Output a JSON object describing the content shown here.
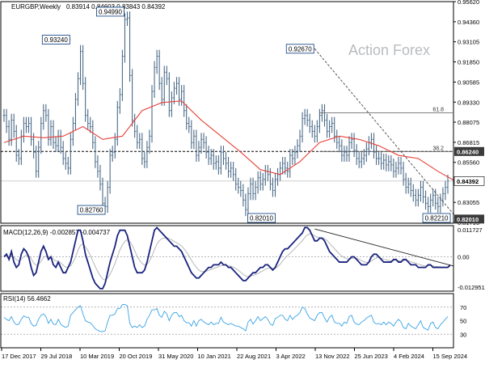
{
  "chart_data": {
    "type": "line",
    "header": {
      "symbol": "EURGBP,Weekly",
      "ohlc": "0.83914 0.84603 0.83843 0.84392"
    },
    "watermark": "Action Forex",
    "x_labels": [
      "17 Dec 2017",
      "29 Jul 2018",
      "10 Mar 2019",
      "20 Oct 2019",
      "31 May 2020",
      "10 Jan 2021",
      "22 Aug 2021",
      "3 Apr 2022",
      "13 Nov 2022",
      "25 Jun 2023",
      "4 Feb 2024",
      "15 Sep 2024"
    ],
    "price_panel": {
      "y_range": [
        0.8175,
        0.9562
      ],
      "y_ticks": [
        "0.95620",
        "0.94360",
        "0.93105",
        "0.91850",
        "0.90585",
        "0.89330",
        "0.88075",
        "0.86815",
        "0.85560",
        "0.84305",
        "0.83055",
        "0.81795"
      ],
      "series_close": [
        0.885,
        0.878,
        0.87,
        0.882,
        0.875,
        0.86,
        0.858,
        0.872,
        0.88,
        0.878,
        0.88,
        0.87,
        0.862,
        0.85,
        0.865,
        0.88,
        0.888,
        0.885,
        0.87,
        0.878,
        0.868,
        0.866,
        0.872,
        0.865,
        0.858,
        0.855,
        0.852,
        0.87,
        0.88,
        0.895,
        0.908,
        0.925,
        0.905,
        0.885,
        0.88,
        0.878,
        0.868,
        0.856,
        0.85,
        0.842,
        0.83,
        0.828,
        0.84,
        0.86,
        0.862,
        0.87,
        0.89,
        0.898,
        0.922,
        0.945,
        0.946,
        0.91,
        0.882,
        0.875,
        0.868,
        0.87,
        0.858,
        0.856,
        0.865,
        0.872,
        0.9,
        0.915,
        0.922,
        0.905,
        0.895,
        0.912,
        0.908,
        0.888,
        0.896,
        0.902,
        0.905,
        0.895,
        0.9,
        0.888,
        0.88,
        0.878,
        0.868,
        0.872,
        0.86,
        0.865,
        0.87,
        0.868,
        0.862,
        0.858,
        0.86,
        0.855,
        0.856,
        0.852,
        0.862,
        0.858,
        0.855,
        0.85,
        0.852,
        0.848,
        0.842,
        0.84,
        0.838,
        0.832,
        0.826,
        0.836,
        0.842,
        0.836,
        0.84,
        0.846,
        0.842,
        0.845,
        0.85,
        0.848,
        0.842,
        0.838,
        0.845,
        0.848,
        0.852,
        0.855,
        0.852,
        0.85,
        0.86,
        0.858,
        0.862,
        0.866,
        0.872,
        0.883,
        0.885,
        0.882,
        0.878,
        0.875,
        0.872,
        0.878,
        0.885,
        0.888,
        0.882,
        0.875,
        0.878,
        0.88,
        0.872,
        0.868,
        0.866,
        0.86,
        0.862,
        0.86,
        0.868,
        0.87,
        0.863,
        0.858,
        0.856,
        0.858,
        0.86,
        0.864,
        0.868,
        0.87,
        0.862,
        0.858,
        0.858,
        0.855,
        0.857,
        0.854,
        0.856,
        0.854,
        0.85,
        0.852,
        0.855,
        0.852,
        0.845,
        0.84,
        0.842,
        0.838,
        0.835,
        0.832,
        0.835,
        0.84,
        0.834,
        0.83,
        0.828,
        0.832,
        0.835,
        0.83,
        0.828,
        0.832,
        0.836,
        0.84,
        0.8439
      ],
      "ma_points": [
        [
          0,
          0.868
        ],
        [
          8,
          0.872
        ],
        [
          16,
          0.871
        ],
        [
          24,
          0.872
        ],
        [
          32,
          0.878
        ],
        [
          40,
          0.87
        ],
        [
          48,
          0.872
        ],
        [
          56,
          0.888
        ],
        [
          64,
          0.893
        ],
        [
          72,
          0.894
        ],
        [
          80,
          0.882
        ],
        [
          88,
          0.872
        ],
        [
          96,
          0.862
        ],
        [
          104,
          0.851
        ],
        [
          112,
          0.848
        ],
        [
          120,
          0.856
        ],
        [
          128,
          0.868
        ],
        [
          136,
          0.872
        ],
        [
          144,
          0.87
        ],
        [
          152,
          0.866
        ],
        [
          160,
          0.86
        ],
        [
          168,
          0.858
        ],
        [
          176,
          0.85
        ],
        [
          184,
          0.843
        ]
      ],
      "hlines": [
        {
          "label": "61.8",
          "value": 0.8866,
          "x_from": 128
        },
        {
          "label": "38.2",
          "value": 0.8624,
          "x_from": 128
        }
      ],
      "dashed_level": 0.8624,
      "trendline": {
        "from": [
          126,
          0.9267
        ],
        "to": [
          184,
          0.8201
        ]
      },
      "annotations": [
        {
          "text": "0.93240",
          "x": 27,
          "value": 0.9324
        },
        {
          "text": "0.94990",
          "x": 49,
          "value": 0.9499
        },
        {
          "text": "0.82760",
          "x": 41,
          "value": 0.8276
        },
        {
          "text": "0.92670",
          "x": 126,
          "value": 0.9267
        },
        {
          "text": "0.82010",
          "x": 110,
          "value": 0.8201
        },
        {
          "text": "0.82210",
          "x": 181,
          "value": 0.8221
        }
      ],
      "price_tags": [
        {
          "text": "0.86240",
          "value": 0.8624
        },
        {
          "text": "0.84392",
          "value": 0.84392
        },
        {
          "text": "0.82010",
          "value": 0.8201
        }
      ]
    },
    "macd_panel": {
      "label": "MACD(12,26,9) -0.002857 -0.004737",
      "y_range": [
        -0.01295,
        0.01173
      ],
      "y_ticks": [
        "0.011727",
        "0.00",
        "-0.012951"
      ],
      "zero_label": "0.00",
      "macd": [
        0.0,
        0.001,
        -0.001,
        0.002,
        -0.002,
        -0.004,
        -0.003,
        0.001,
        0.003,
        0.002,
        0.0,
        -0.004,
        -0.007,
        -0.006,
        -0.002,
        0.002,
        0.004,
        0.002,
        -0.001,
        0.0,
        -0.003,
        -0.004,
        -0.002,
        -0.004,
        -0.006,
        -0.006,
        -0.004,
        -0.002,
        0.002,
        0.006,
        0.01,
        0.01,
        0.006,
        0.001,
        -0.002,
        -0.005,
        -0.008,
        -0.01,
        -0.011,
        -0.012,
        -0.012,
        -0.01,
        -0.006,
        -0.002,
        0.001,
        0.004,
        0.008,
        0.01,
        0.01,
        0.01,
        0.008,
        0.004,
        0.0,
        -0.004,
        -0.006,
        -0.006,
        -0.006,
        -0.005,
        -0.002,
        0.002,
        0.006,
        0.01,
        0.011,
        0.01,
        0.009,
        0.008,
        0.007,
        0.006,
        0.005,
        0.004,
        0.004,
        0.003,
        0.002,
        0.0,
        -0.002,
        -0.004,
        -0.006,
        -0.007,
        -0.008,
        -0.008,
        -0.007,
        -0.006,
        -0.005,
        -0.004,
        -0.004,
        -0.003,
        -0.003,
        -0.003,
        -0.002,
        -0.003,
        -0.003,
        -0.004,
        -0.004,
        -0.005,
        -0.006,
        -0.007,
        -0.008,
        -0.009,
        -0.009,
        -0.008,
        -0.007,
        -0.006,
        -0.006,
        -0.005,
        -0.004,
        -0.004,
        -0.003,
        -0.003,
        -0.004,
        -0.005,
        -0.004,
        -0.002,
        0.0,
        0.002,
        0.003,
        0.003,
        0.004,
        0.005,
        0.006,
        0.007,
        0.008,
        0.009,
        0.011,
        0.011,
        0.01,
        0.008,
        0.006,
        0.006,
        0.007,
        0.007,
        0.006,
        0.004,
        0.002,
        0.001,
        0.0,
        -0.001,
        -0.002,
        -0.002,
        -0.002,
        -0.002,
        -0.001,
        0.0,
        0.0,
        -0.001,
        -0.002,
        -0.003,
        -0.003,
        -0.003,
        -0.002,
        0.0,
        0.001,
        0.001,
        0.0,
        -0.001,
        -0.002,
        -0.002,
        -0.002,
        -0.002,
        -0.001,
        -0.001,
        -0.002,
        -0.002,
        -0.001,
        -0.001,
        -0.002,
        -0.003,
        -0.003,
        -0.003,
        -0.004,
        -0.004,
        -0.004,
        -0.004,
        -0.003,
        -0.003,
        -0.004,
        -0.004,
        -0.004,
        -0.004,
        -0.004,
        -0.004,
        -0.004,
        -0.003
      ],
      "trendline": {
        "from": [
          126,
          0.0105
        ],
        "to": [
          186,
          -0.0035
        ]
      }
    },
    "rsi_panel": {
      "label": "RSI(14) 56.4662",
      "y_range": [
        10,
        90
      ],
      "y_ticks": [
        "70",
        "50",
        "30"
      ],
      "levels": [
        70,
        30
      ],
      "rsi": [
        55,
        52,
        50,
        56,
        48,
        44,
        45,
        52,
        57,
        55,
        55,
        46,
        42,
        43,
        52,
        58,
        60,
        56,
        46,
        52,
        45,
        44,
        52,
        45,
        42,
        40,
        42,
        58,
        62,
        66,
        70,
        72,
        60,
        50,
        48,
        47,
        43,
        38,
        36,
        34,
        34,
        35,
        48,
        58,
        58,
        60,
        68,
        68,
        74,
        74,
        72,
        46,
        40,
        42,
        40,
        44,
        40,
        42,
        52,
        58,
        66,
        66,
        68,
        58,
        55,
        64,
        60,
        50,
        58,
        62,
        62,
        56,
        58,
        50,
        47,
        47,
        42,
        50,
        42,
        50,
        52,
        48,
        46,
        44,
        48,
        44,
        46,
        46,
        55,
        48,
        46,
        44,
        46,
        44,
        42,
        42,
        40,
        38,
        35,
        48,
        52,
        45,
        50,
        56,
        50,
        53,
        56,
        52,
        45,
        43,
        53,
        55,
        58,
        58,
        52,
        50,
        58,
        52,
        56,
        58,
        62,
        70,
        68,
        60,
        54,
        52,
        50,
        58,
        62,
        62,
        54,
        48,
        55,
        58,
        48,
        46,
        46,
        42,
        48,
        46,
        56,
        58,
        48,
        45,
        44,
        48,
        50,
        54,
        56,
        58,
        48,
        45,
        46,
        44,
        48,
        44,
        48,
        46,
        42,
        48,
        52,
        48,
        40,
        38,
        46,
        42,
        40,
        38,
        44,
        50,
        40,
        38,
        36,
        46,
        48,
        40,
        38,
        44,
        48,
        52,
        56
      ]
    }
  }
}
